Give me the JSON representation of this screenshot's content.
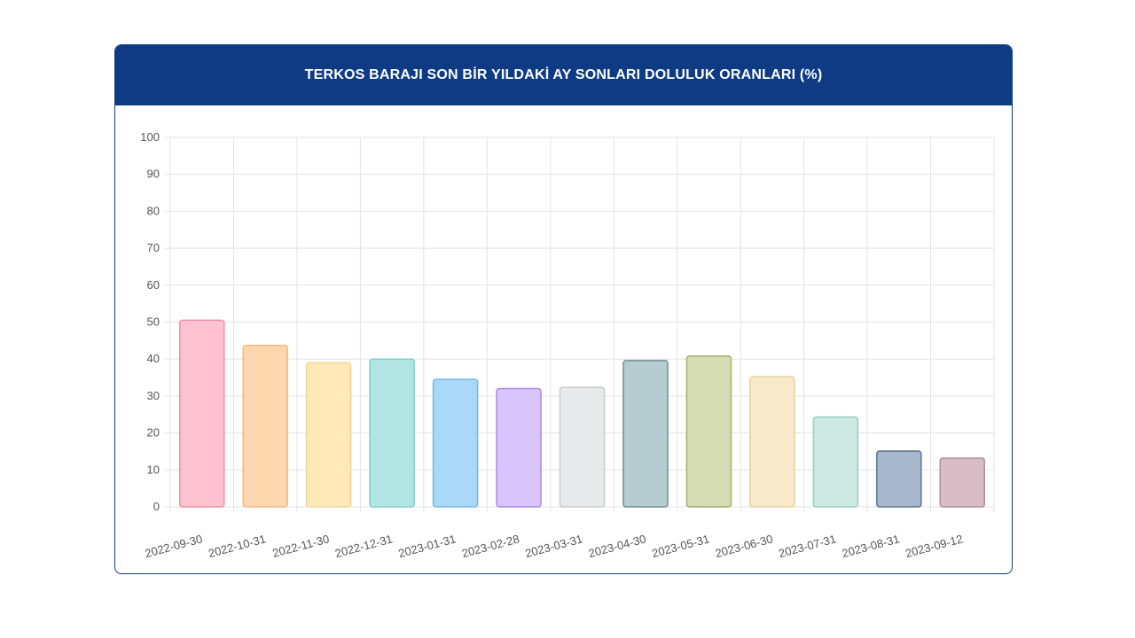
{
  "header": {
    "title": "TERKOS BARAJI SON BİR YILDAKİ AY SONLARI DOLULUK ORANLARI (%)"
  },
  "chart_data": {
    "type": "bar",
    "title": "TERKOS BARAJI SON BİR YILDAKİ AY SONLARI DOLULUK ORANLARI (%)",
    "categories": [
      "2022-09-30",
      "2022-10-31",
      "2022-11-30",
      "2022-12-31",
      "2023-01-31",
      "2023-02-28",
      "2023-03-31",
      "2023-04-30",
      "2023-05-31",
      "2023-06-30",
      "2023-07-31",
      "2023-08-31",
      "2023-09-12"
    ],
    "values": [
      50.5,
      43.7,
      39.0,
      40.0,
      34.5,
      32.0,
      32.3,
      39.6,
      40.8,
      35.2,
      24.3,
      15.1,
      13.2
    ],
    "ylim": [
      0,
      100
    ],
    "yticks": [
      0,
      10,
      20,
      30,
      40,
      50,
      60,
      70,
      80,
      90,
      100
    ],
    "grid": true,
    "legend": "none",
    "colors": {
      "fill": [
        "#ffc2d1",
        "#ffd7ae",
        "#ffe9b8",
        "#b3e5e5",
        "#aad9f7",
        "#d9c5fb",
        "#e8e9eb",
        "#b5ccd0",
        "#d6dcb4",
        "#f7e9c9",
        "#cbe9e0",
        "#a7b7cc",
        "#d8bcc6"
      ],
      "stroke": [
        "#f18fa6",
        "#f4b981",
        "#f5d692",
        "#7ccfcf",
        "#6fbbe8",
        "#a98ce8",
        "#c9cacd",
        "#6f8e94",
        "#a4ad6e",
        "#ebd195",
        "#97d0bf",
        "#5d7592",
        "#b18f9c"
      ],
      "grid": "#e3e3e3",
      "axis_text": "#555555"
    }
  }
}
